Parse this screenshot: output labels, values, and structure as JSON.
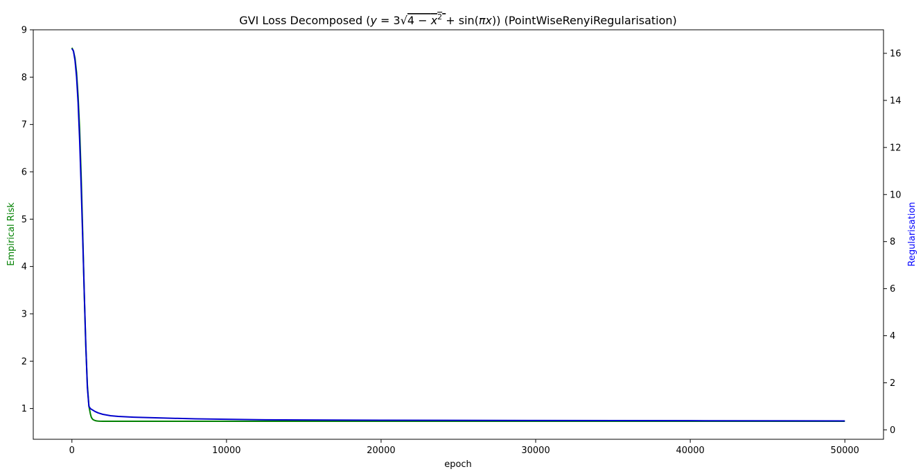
{
  "chart_data": {
    "type": "line",
    "title": "GVI Loss Decomposed ($y=3\\sqrt{4-x^2}+\\sin(\\pi x)$) (PointWiseRenyiRegularisation)",
    "title_parts": {
      "prefix": "GVI Loss Decomposed (",
      "suffix": ") (PointWiseRenyiRegularisation)"
    },
    "xlabel": "epoch",
    "ylabel_left": "Empirical Risk",
    "ylabel_right": "Regularisation",
    "xlim": [
      -2500,
      52500
    ],
    "ylim_left": [
      0.35,
      9.0
    ],
    "ylim_right": [
      -0.4,
      17.0
    ],
    "x_ticks": [
      0,
      10000,
      20000,
      30000,
      40000,
      50000
    ],
    "x_tick_labels": [
      "0",
      "10000",
      "20000",
      "30000",
      "40000",
      "50000"
    ],
    "y_left_ticks": [
      1,
      2,
      3,
      4,
      5,
      6,
      7,
      8,
      9
    ],
    "y_left_tick_labels": [
      "1",
      "2",
      "3",
      "4",
      "5",
      "6",
      "7",
      "8",
      "9"
    ],
    "y_right_ticks": [
      0,
      2,
      4,
      6,
      8,
      10,
      12,
      14,
      16
    ],
    "y_right_tick_labels": [
      "0",
      "2",
      "4",
      "6",
      "8",
      "10",
      "12",
      "14",
      "16"
    ],
    "grid": false,
    "colors": {
      "empirical_risk": "#008000",
      "regularisation": "#0000cc",
      "axis": "#000000",
      "left_label": "#008000",
      "right_label": "#0000ff"
    },
    "series": [
      {
        "axis": "left",
        "x": [
          0,
          100,
          200,
          300,
          400,
          500,
          600,
          700,
          800,
          900,
          1000,
          1100,
          1200,
          1250,
          1300,
          1350,
          1400,
          1500,
          1600,
          1700,
          1800,
          2000,
          2500,
          3000,
          4000,
          5000,
          7000,
          10000,
          15000,
          20000,
          30000,
          40000,
          50000
        ],
        "y": [
          8.62,
          8.55,
          8.4,
          8.1,
          7.6,
          6.9,
          5.9,
          4.7,
          3.4,
          2.3,
          1.5,
          1.05,
          0.88,
          0.82,
          0.79,
          0.77,
          0.76,
          0.745,
          0.738,
          0.734,
          0.732,
          0.73,
          0.73,
          0.73,
          0.73,
          0.73,
          0.73,
          0.73,
          0.73,
          0.73,
          0.73,
          0.73,
          0.73
        ]
      },
      {
        "axis": "right",
        "x": [
          0,
          100,
          200,
          300,
          400,
          500,
          600,
          700,
          800,
          900,
          1000,
          1100,
          1200,
          1250,
          1300,
          1350,
          1400,
          1500,
          1700,
          2000,
          2500,
          3000,
          4000,
          5000,
          6000,
          8000,
          10000,
          12000,
          15000,
          20000,
          30000,
          40000,
          50000
        ],
        "y": [
          16.2,
          16.1,
          15.7,
          15.0,
          13.9,
          12.3,
          10.3,
          8.1,
          5.8,
          3.6,
          1.8,
          1.0,
          0.9,
          0.88,
          0.86,
          0.84,
          0.82,
          0.78,
          0.72,
          0.66,
          0.6,
          0.57,
          0.54,
          0.52,
          0.5,
          0.47,
          0.45,
          0.43,
          0.42,
          0.41,
          0.4,
          0.39,
          0.38
        ]
      }
    ]
  }
}
